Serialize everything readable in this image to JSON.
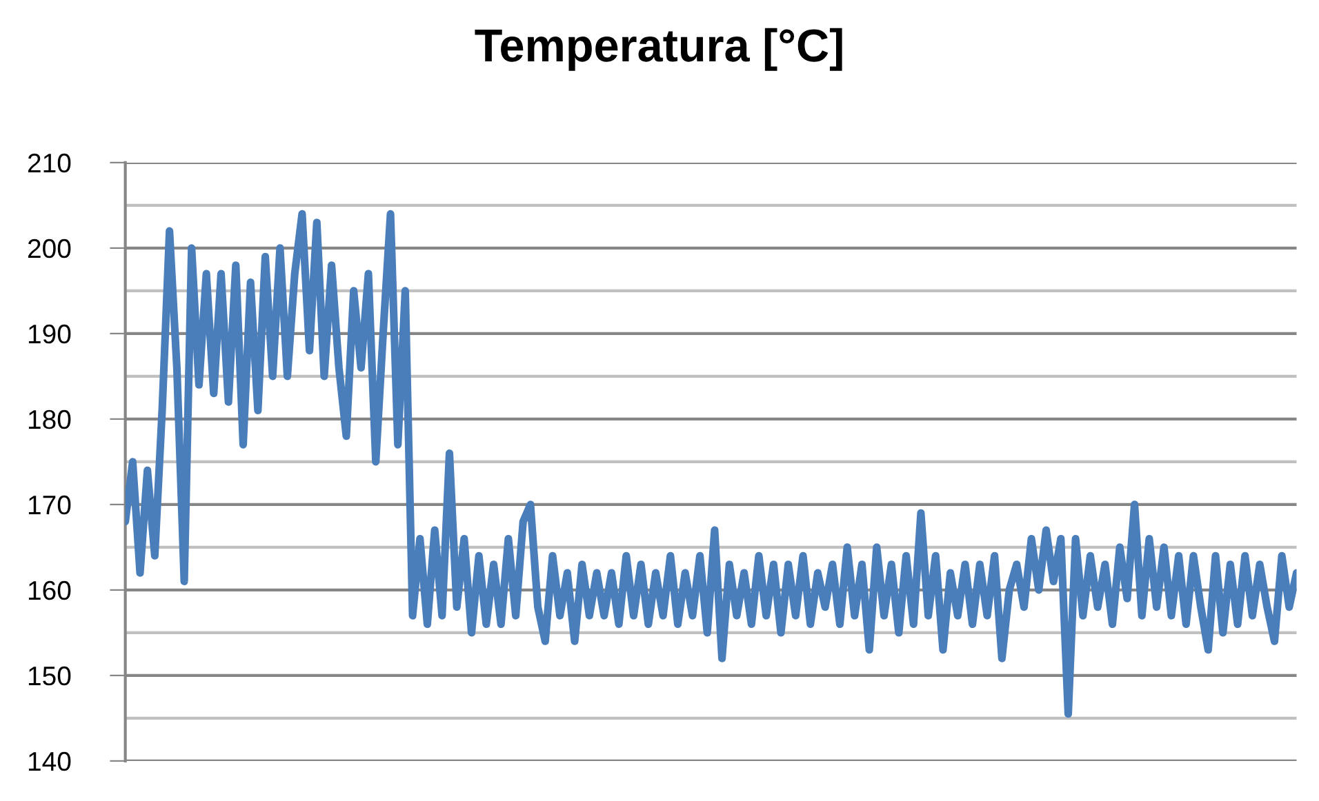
{
  "chart_data": {
    "type": "line",
    "title": "Temperatura [°C]",
    "categories": [
      null,
      null,
      null,
      null,
      null,
      null,
      null,
      null,
      null,
      null,
      null,
      null,
      null,
      null,
      null,
      null,
      null,
      null,
      null,
      null,
      null,
      null,
      null,
      null,
      null,
      null,
      null,
      null,
      null,
      null,
      null,
      null,
      null,
      null,
      null,
      null,
      null,
      null,
      null,
      null,
      null,
      null,
      null,
      null,
      null,
      null,
      null,
      null,
      null,
      null,
      null,
      null,
      null,
      null,
      null,
      null,
      null,
      null,
      null,
      null,
      null,
      null,
      null,
      null,
      null,
      null,
      null,
      null,
      null,
      null,
      null,
      null,
      null,
      null,
      null,
      null,
      null,
      null,
      null,
      null,
      null,
      null,
      null,
      null,
      null,
      null,
      null,
      null,
      null,
      null,
      null,
      null,
      null,
      null,
      null,
      null,
      null,
      null,
      null,
      null,
      null,
      null,
      null,
      null,
      null,
      null,
      null,
      null,
      null,
      null,
      null,
      null,
      null,
      null,
      null,
      null,
      null,
      null,
      null,
      null,
      null,
      null,
      null,
      null,
      null,
      null,
      null,
      null,
      null,
      null,
      null,
      null,
      null,
      null,
      null,
      null,
      null,
      null,
      null,
      null,
      null,
      null,
      null,
      null,
      null,
      null,
      null,
      null,
      null,
      null,
      null,
      null,
      null,
      null,
      null,
      null,
      null,
      null,
      null,
      null
    ],
    "series": [
      {
        "color": "#4a7ebb",
        "values": [
          168,
          175,
          162,
          174,
          164,
          181,
          202,
          186,
          161,
          200,
          184,
          197,
          183,
          197,
          182,
          198,
          177,
          196,
          181,
          199,
          185,
          200,
          185,
          197,
          204,
          188,
          203,
          185,
          198,
          186,
          178,
          195,
          186,
          197,
          175,
          190,
          204,
          177,
          195,
          157,
          166,
          156,
          167,
          157,
          176,
          158,
          166,
          155,
          164,
          156,
          163,
          156,
          166,
          157,
          168,
          170,
          158,
          154,
          164,
          157,
          162,
          154,
          163,
          157,
          162,
          157,
          162,
          156,
          164,
          157,
          163,
          156,
          162,
          157,
          164,
          156,
          162,
          157,
          164,
          155,
          167,
          152,
          163,
          157,
          162,
          156,
          164,
          157,
          163,
          155,
          163,
          157,
          164,
          156,
          162,
          158,
          163,
          156,
          165,
          157,
          163,
          153,
          165,
          157,
          163,
          155,
          164,
          156,
          169,
          157,
          164,
          153,
          162,
          157,
          163,
          156,
          163,
          157,
          164,
          152,
          160,
          163,
          158,
          166,
          160,
          167,
          161,
          166,
          145.5,
          166,
          157,
          164,
          158,
          163,
          156,
          165,
          159,
          170,
          157,
          166,
          158,
          165,
          157,
          164,
          156,
          164,
          158,
          153,
          164,
          155,
          163,
          156,
          164,
          157,
          163,
          158,
          154,
          164,
          158,
          162
        ]
      }
    ],
    "ylim": [
      140,
      210
    ],
    "yticks": [
      140,
      {
        "value": 145,
        "label": null
      },
      150,
      {
        "value": 155,
        "label": null
      },
      160,
      {
        "value": 165,
        "label": null
      },
      170,
      {
        "value": 175,
        "label": null
      },
      180,
      {
        "value": 185,
        "label": null
      },
      190,
      {
        "value": 195,
        "label": null
      },
      200,
      {
        "value": 205,
        "label": null
      },
      210
    ],
    "grid": "y",
    "marker": "none",
    "line_style": "solid"
  }
}
